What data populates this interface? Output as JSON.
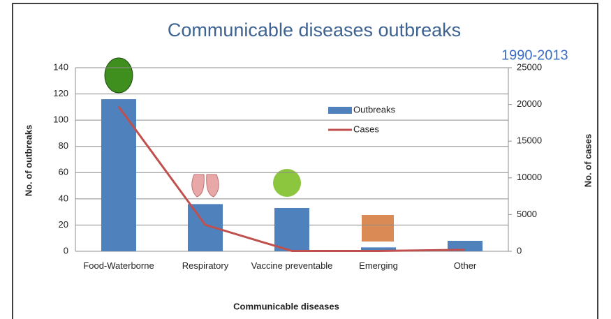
{
  "chart_data": {
    "type": "bar",
    "title": "Communicable diseases outbreaks",
    "subtitle": "1990-2013",
    "x_label": "Communicable diseases",
    "y_label": "No. of outbreaks",
    "y2_label": "No. of cases",
    "categories": [
      "Food-Waterborne",
      "Respiratory",
      "Vaccine preventable",
      "Emerging",
      "Other"
    ],
    "series": [
      {
        "name": "Outbreaks",
        "type": "bar",
        "color": "#4f81bd",
        "values": [
          116,
          36,
          33,
          3,
          8
        ]
      },
      {
        "name": "Cases",
        "type": "line",
        "axis": "y2",
        "color": "#c0504d",
        "values": [
          19700,
          3600,
          50,
          50,
          200
        ]
      }
    ],
    "ylim": [
      0,
      140
    ],
    "yticks": [
      0,
      20,
      40,
      60,
      80,
      100,
      120,
      140
    ],
    "y2lim": [
      0,
      25000
    ],
    "y2ticks": [
      0,
      5000,
      10000,
      15000,
      20000,
      25000
    ],
    "grid": true,
    "legend": "top-right"
  }
}
